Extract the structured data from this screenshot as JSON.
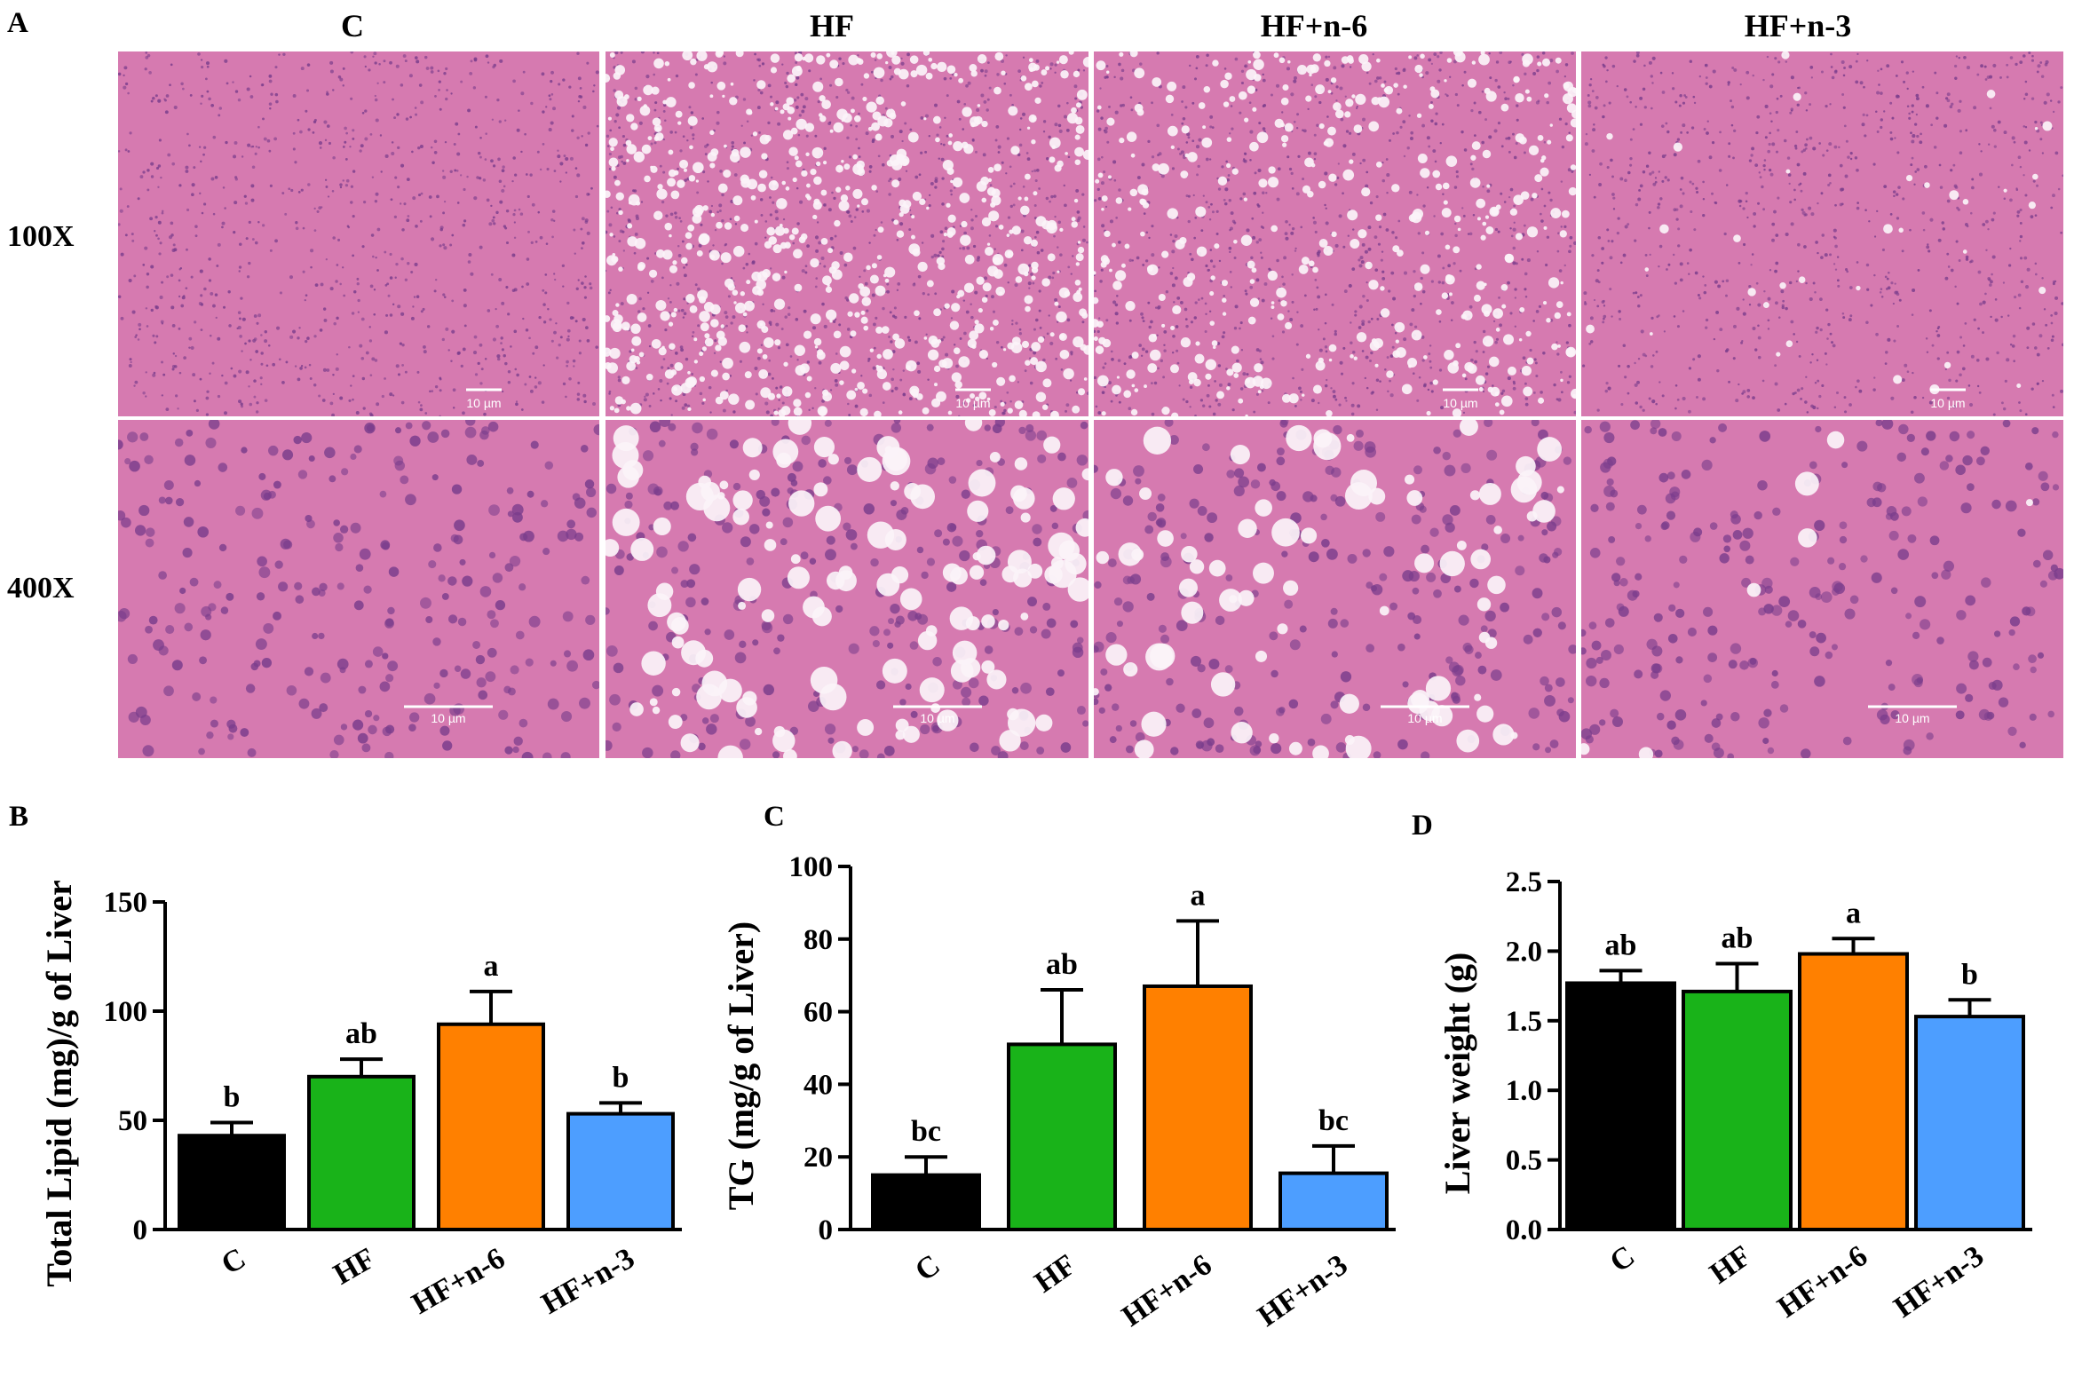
{
  "panel_a": {
    "letter": "A",
    "columns": [
      "C",
      "HF",
      "HF+n-6",
      "HF+n-3"
    ],
    "rows": [
      "100X",
      "400X"
    ],
    "scale_bar_label": "10 µm",
    "vacuole_density": [
      0,
      1,
      0.6,
      0.05
    ],
    "colors": {
      "tissue": "#d67ab0",
      "nuclei": "#7a3d8c",
      "vacuole": "#fbf3f8"
    }
  },
  "chart_data": [
    {
      "type": "bar",
      "letter": "B",
      "categories": [
        "C",
        "HF",
        "HF+n-6",
        "HF+n-3"
      ],
      "values": [
        43,
        70,
        94,
        53
      ],
      "errors": [
        6,
        8,
        15,
        5
      ],
      "significance": [
        "b",
        "ab",
        "a",
        "b"
      ],
      "colors": [
        "#000000",
        "#19b319",
        "#ff8000",
        "#4d9eff"
      ],
      "ylabel": "Total Lipid (mg)/g of Liver",
      "ylim": [
        0,
        150
      ],
      "yticks": [
        "0",
        "50",
        "100",
        "150"
      ],
      "grid": false
    },
    {
      "type": "bar",
      "letter": "C",
      "categories": [
        "C",
        "HF",
        "HF+n-6",
        "HF+n-3"
      ],
      "values": [
        15,
        51,
        67,
        15.5
      ],
      "errors": [
        5,
        15,
        18,
        7.5
      ],
      "significance": [
        "bc",
        "ab",
        "a",
        "bc"
      ],
      "colors": [
        "#000000",
        "#19b319",
        "#ff8000",
        "#4d9eff"
      ],
      "ylabel": "TG (mg/g of Liver)",
      "ylim": [
        0,
        100
      ],
      "yticks": [
        "0",
        "20",
        "40",
        "60",
        "80",
        "100"
      ],
      "grid": false
    },
    {
      "type": "bar",
      "letter": "D",
      "categories": [
        "C",
        "HF",
        "HF+n-6",
        "HF+n-3"
      ],
      "values": [
        1.77,
        1.71,
        1.98,
        1.53
      ],
      "errors": [
        0.09,
        0.2,
        0.11,
        0.12
      ],
      "significance": [
        "ab",
        "ab",
        "a",
        "b"
      ],
      "colors": [
        "#000000",
        "#19b319",
        "#ff8000",
        "#4d9eff"
      ],
      "ylabel": "Liver weight (g)",
      "ylim": [
        0,
        2.5
      ],
      "yticks": [
        "0.0",
        "0.5",
        "1.0",
        "1.5",
        "2.0",
        "2.5"
      ],
      "grid": false
    }
  ]
}
